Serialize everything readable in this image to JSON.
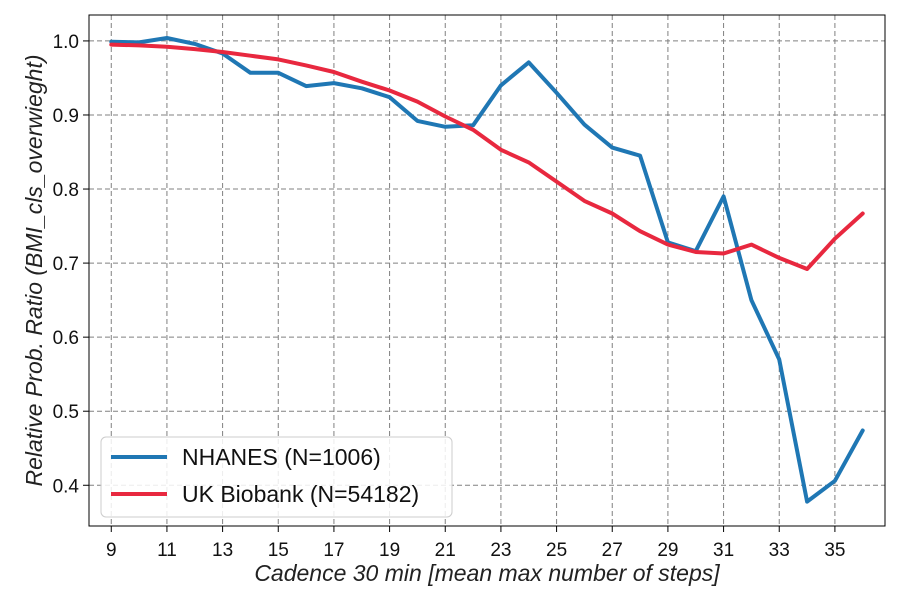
{
  "chart_data": {
    "type": "line",
    "xlabel": "Cadence 30 min [mean max number of steps]",
    "ylabel": "Relative Prob. Ratio (BMI_cls_overwieght)",
    "xlim": [
      8.2,
      36.8
    ],
    "ylim": [
      0.345,
      1.035
    ],
    "xticks": [
      9,
      11,
      13,
      15,
      17,
      19,
      21,
      23,
      25,
      27,
      29,
      31,
      33,
      35
    ],
    "yticks": [
      0.4,
      0.5,
      0.6,
      0.7,
      0.8,
      0.9,
      1.0
    ],
    "ytick_labels": [
      "0.4",
      "0.5",
      "0.6",
      "0.7",
      "0.8",
      "0.9",
      "1.0"
    ],
    "grid": true,
    "legend_position": "lower-left",
    "x": [
      9,
      10,
      11,
      12,
      13,
      14,
      15,
      16,
      17,
      18,
      19,
      20,
      21,
      22,
      23,
      24,
      25,
      26,
      27,
      28,
      29,
      30,
      31,
      32,
      33,
      34,
      35,
      36
    ],
    "series": [
      {
        "name": "NHANES (N=1006)",
        "color": "#1f77b4",
        "values": [
          0.999,
          0.998,
          1.004,
          0.996,
          0.983,
          0.957,
          0.957,
          0.939,
          0.943,
          0.936,
          0.924,
          0.892,
          0.884,
          0.886,
          0.94,
          0.971,
          0.93,
          0.887,
          0.856,
          0.845,
          0.728,
          0.716,
          0.79,
          0.65,
          0.57,
          0.378,
          0.406,
          0.474
        ]
      },
      {
        "name": "UK Biobank (N=54182)",
        "color": "#e8283f",
        "values": [
          0.995,
          0.994,
          0.992,
          0.989,
          0.985,
          0.98,
          0.975,
          0.967,
          0.958,
          0.945,
          0.933,
          0.918,
          0.898,
          0.88,
          0.853,
          0.836,
          0.81,
          0.784,
          0.767,
          0.743,
          0.725,
          0.715,
          0.713,
          0.725,
          0.707,
          0.692,
          0.733,
          0.767
        ]
      }
    ]
  }
}
